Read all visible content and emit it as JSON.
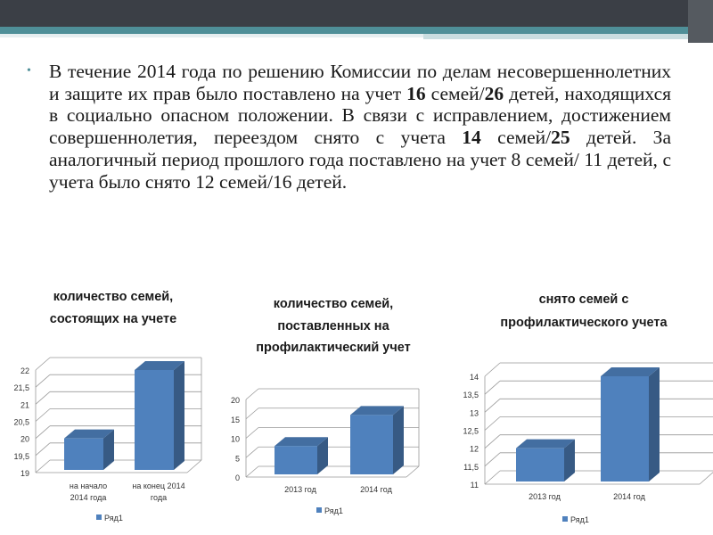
{
  "paragraph": {
    "p1": "В течение 2014 года по решению Комиссии по делам несовершеннолетних и защите их прав было поставлено на учет ",
    "b1": "16",
    "p2": " семей/",
    "b2": "26",
    "p3": " детей, находящихся в социально опасном положении. В связи с исправлением, достижением совершеннолетия, переездом снято с учета ",
    "b3": "14",
    "p4": " семей/",
    "b4": "25",
    "p5": " детей. За аналогичный период прошлого года поставлено на учет 8 семей/ 11 детей, с учета было снято 12 семей/16 детей."
  },
  "chart_data": [
    {
      "type": "bar",
      "title_lines": [
        "количество семей,",
        "состоящих на учете"
      ],
      "categories": [
        [
          "на начало",
          "2014 года"
        ],
        [
          "на конец 2014",
          "года"
        ]
      ],
      "series": [
        {
          "name": "Ряд1",
          "values": [
            20.0,
            22.0
          ]
        }
      ],
      "ylim": [
        19,
        22
      ],
      "yticks": [
        "19",
        "19,5",
        "20",
        "20,5",
        "21",
        "21,5",
        "22"
      ],
      "ytick_values": [
        19,
        19.5,
        20,
        20.5,
        21,
        21.5,
        22
      ],
      "legend": "Ряд1",
      "color": "#4f81bd"
    },
    {
      "type": "bar",
      "title_lines": [
        "количество семей,",
        "поставленных на",
        "профилактический учет"
      ],
      "categories": [
        [
          "2013 год"
        ],
        [
          "2014 год"
        ]
      ],
      "series": [
        {
          "name": "Ряд1",
          "values": [
            8,
            16
          ]
        }
      ],
      "ylim": [
        0,
        20
      ],
      "yticks": [
        "0",
        "5",
        "10",
        "15",
        "20"
      ],
      "ytick_values": [
        0,
        5,
        10,
        15,
        20
      ],
      "legend": "Ряд1",
      "color": "#4f81bd"
    },
    {
      "type": "bar",
      "title_lines": [
        "снято семей с",
        "профилактического учета"
      ],
      "categories": [
        [
          "2013 год"
        ],
        [
          "2014 год"
        ]
      ],
      "series": [
        {
          "name": "Ряд1",
          "values": [
            12,
            14
          ]
        }
      ],
      "ylim": [
        11,
        14
      ],
      "yticks": [
        "11",
        "11,5",
        "12",
        "12,5",
        "13",
        "13,5",
        "14"
      ],
      "ytick_values": [
        11,
        11.5,
        12,
        12.5,
        13,
        13.5,
        14
      ],
      "legend": "Ряд1",
      "color": "#4f81bd"
    }
  ]
}
